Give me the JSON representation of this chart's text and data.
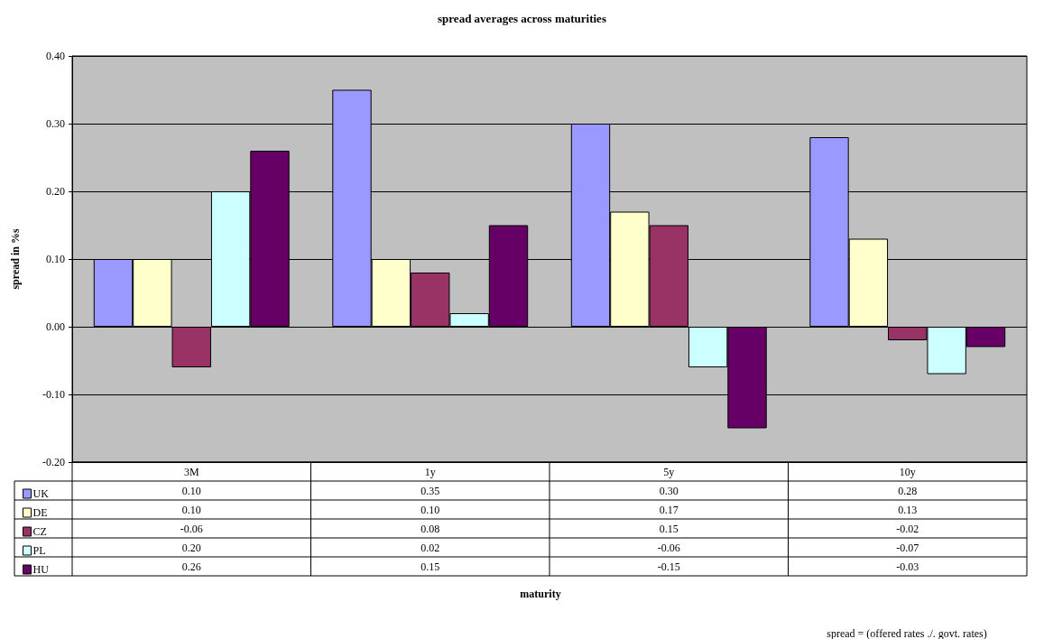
{
  "chart_data": {
    "type": "bar",
    "title": "spread averages across maturities",
    "ylabel": "spread in %s",
    "annotations": [
      "maturity",
      "spread = (offered rates ./. govt. rates)"
    ],
    "categories": [
      "3M",
      "1y",
      "5y",
      "10y"
    ],
    "series": [
      {
        "name": "UK",
        "color": "#9999ff",
        "values": [
          0.1,
          0.35,
          0.3,
          0.28
        ],
        "value_labels": [
          "0.10",
          "0.35",
          "0.30",
          "0.28"
        ]
      },
      {
        "name": "DE",
        "color": "#ffffcc",
        "values": [
          0.1,
          0.1,
          0.17,
          0.13
        ],
        "value_labels": [
          "0.10",
          "0.10",
          "0.17",
          "0.13"
        ]
      },
      {
        "name": "CZ",
        "color": "#993366",
        "values": [
          -0.06,
          0.08,
          0.15,
          -0.02
        ],
        "value_labels": [
          "-0.06",
          "0.08",
          "0.15",
          "-0.02"
        ]
      },
      {
        "name": "PL",
        "color": "#ccffff",
        "values": [
          0.2,
          0.02,
          -0.06,
          -0.07
        ],
        "value_labels": [
          "0.20",
          "0.02",
          "-0.06",
          "-0.07"
        ]
      },
      {
        "name": "HU",
        "color": "#660066",
        "values": [
          0.26,
          0.15,
          -0.15,
          -0.03
        ],
        "value_labels": [
          "0.26",
          "0.15",
          "-0.15",
          "-0.03"
        ]
      }
    ],
    "ylim": [
      -0.2,
      0.4
    ],
    "yticks": [
      {
        "value": -0.2,
        "label": "-0.20"
      },
      {
        "value": -0.1,
        "label": "-0.10"
      },
      {
        "value": 0,
        "label": "0.00"
      },
      {
        "value": 0.1,
        "label": "0.10"
      },
      {
        "value": 0.2,
        "label": "0.20"
      },
      {
        "value": 0.3,
        "label": "0.30"
      },
      {
        "value": 0.4,
        "label": "0.40"
      }
    ],
    "grid": "y",
    "legend": "bottom left"
  }
}
